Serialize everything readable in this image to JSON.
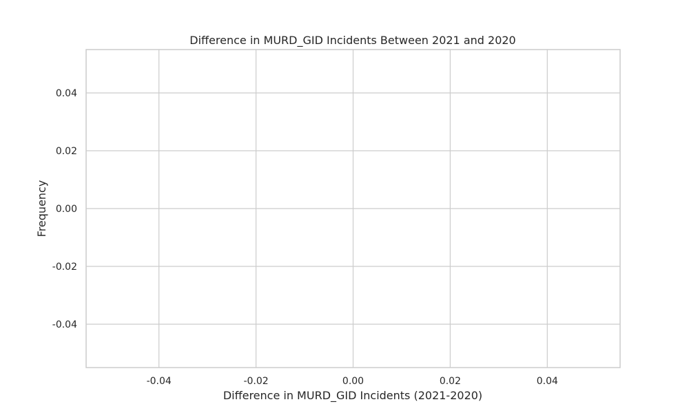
{
  "chart_data": {
    "type": "bar",
    "title": "Difference in MURD_GID Incidents Between 2021 and 2020",
    "xlabel": "Difference in MURD_GID Incidents (2021-2020)",
    "ylabel": "Frequency",
    "xlim": [
      -0.055,
      0.055
    ],
    "ylim": [
      -0.055,
      0.055
    ],
    "xticks": [
      "-0.04",
      "-0.02",
      "0.00",
      "0.02",
      "0.04"
    ],
    "yticks": [
      "-0.04",
      "-0.02",
      "0.00",
      "0.02",
      "0.04"
    ],
    "values": [],
    "grid": true,
    "background": "#ffffff",
    "grid_color": "#cccccc",
    "text_color": "#262626"
  }
}
